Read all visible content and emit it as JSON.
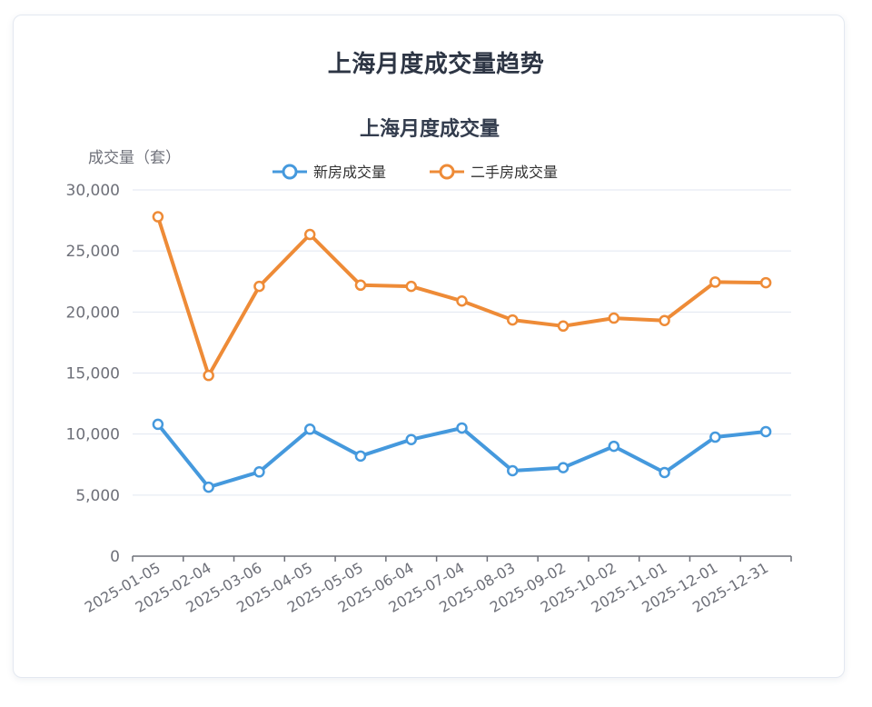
{
  "page": {
    "title": "上海月度成交量趋势"
  },
  "colors": {
    "new_house": "#4599dd",
    "second_hand": "#ee8b37",
    "grid": "#e0e6f1",
    "axis": "#6e7079",
    "title": "#333c4d"
  },
  "chart_data": {
    "type": "line",
    "title": "上海月度成交量",
    "xlabel": "",
    "ylabel": "成交量（套）",
    "ylim": [
      0,
      30000
    ],
    "yticks": [
      "0",
      "5,000",
      "10,000",
      "15,000",
      "20,000",
      "25,000",
      "30,000"
    ],
    "ytick_values": [
      0,
      5000,
      10000,
      15000,
      20000,
      25000,
      30000
    ],
    "grid": true,
    "legend_position": "top",
    "categories": [
      "2025-01-05",
      "2025-02-04",
      "2025-03-06",
      "2025-04-05",
      "2025-05-05",
      "2025-06-04",
      "2025-07-04",
      "2025-08-03",
      "2025-09-02",
      "2025-10-02",
      "2025-11-01",
      "2025-12-01",
      "2025-12-31"
    ],
    "series": [
      {
        "name": "新房成交量",
        "color": "#4599dd",
        "values": [
          10800,
          5650,
          6900,
          10400,
          8200,
          9550,
          10500,
          7000,
          7250,
          9000,
          6850,
          9750,
          10200
        ]
      },
      {
        "name": "二手房成交量",
        "color": "#ee8b37",
        "values": [
          27800,
          14800,
          22100,
          26350,
          22200,
          22100,
          20900,
          19350,
          18850,
          19500,
          19300,
          22450,
          22400
        ]
      }
    ]
  }
}
